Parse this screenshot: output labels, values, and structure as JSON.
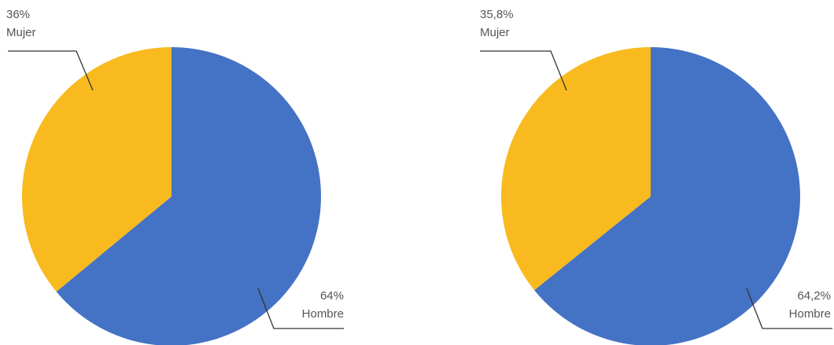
{
  "chart_data": [
    {
      "type": "pie",
      "title": "",
      "slices": [
        {
          "label": "Hombre",
          "value": 64,
          "value_label": "64%",
          "color": "#4472C4"
        },
        {
          "label": "Mujer",
          "value": 36,
          "value_label": "36%",
          "color": "#F8BA1E"
        }
      ],
      "start": "12 o'clock",
      "direction": "clockwise",
      "legend": "none"
    },
    {
      "type": "pie",
      "title": "",
      "slices": [
        {
          "label": "Hombre",
          "value": 64.2,
          "value_label": "64,2%",
          "color": "#4472C4"
        },
        {
          "label": "Mujer",
          "value": 35.8,
          "value_label": "35,8%",
          "color": "#F8BA1E"
        }
      ],
      "start": "12 o'clock",
      "direction": "clockwise",
      "legend": "none"
    }
  ]
}
